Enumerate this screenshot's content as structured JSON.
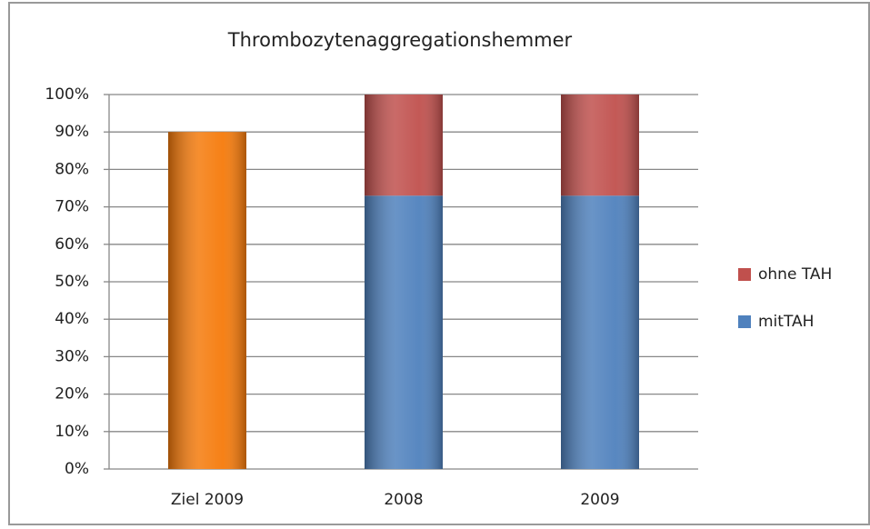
{
  "chart_data": {
    "type": "stacked_bar",
    "title": "Thrombozytenaggregationshemmer",
    "categories": [
      "Ziel 2009",
      "2008",
      "2009"
    ],
    "series": [
      {
        "color": "#f57a0a",
        "values": [
          90,
          null,
          null
        ]
      },
      {
        "name": "mitTAH",
        "color": "#4f81bd",
        "values": [
          null,
          73,
          73
        ]
      },
      {
        "name": "ohne TAH",
        "color": "#c0504d",
        "values": [
          null,
          27,
          27
        ]
      }
    ],
    "ylim": [
      0,
      100
    ],
    "yticks": [
      {
        "value": 0,
        "label": "0%"
      },
      {
        "value": 10,
        "label": "10%"
      },
      {
        "value": 20,
        "label": "20%"
      },
      {
        "value": 30,
        "label": "30%"
      },
      {
        "value": 40,
        "label": "40%"
      },
      {
        "value": 50,
        "label": "50%"
      },
      {
        "value": 60,
        "label": "60%"
      },
      {
        "value": 70,
        "label": "70%"
      },
      {
        "value": 80,
        "label": "80%"
      },
      {
        "value": 90,
        "label": "90%"
      },
      {
        "value": 100,
        "label": "100%"
      }
    ],
    "grid": true,
    "legend": "right"
  }
}
